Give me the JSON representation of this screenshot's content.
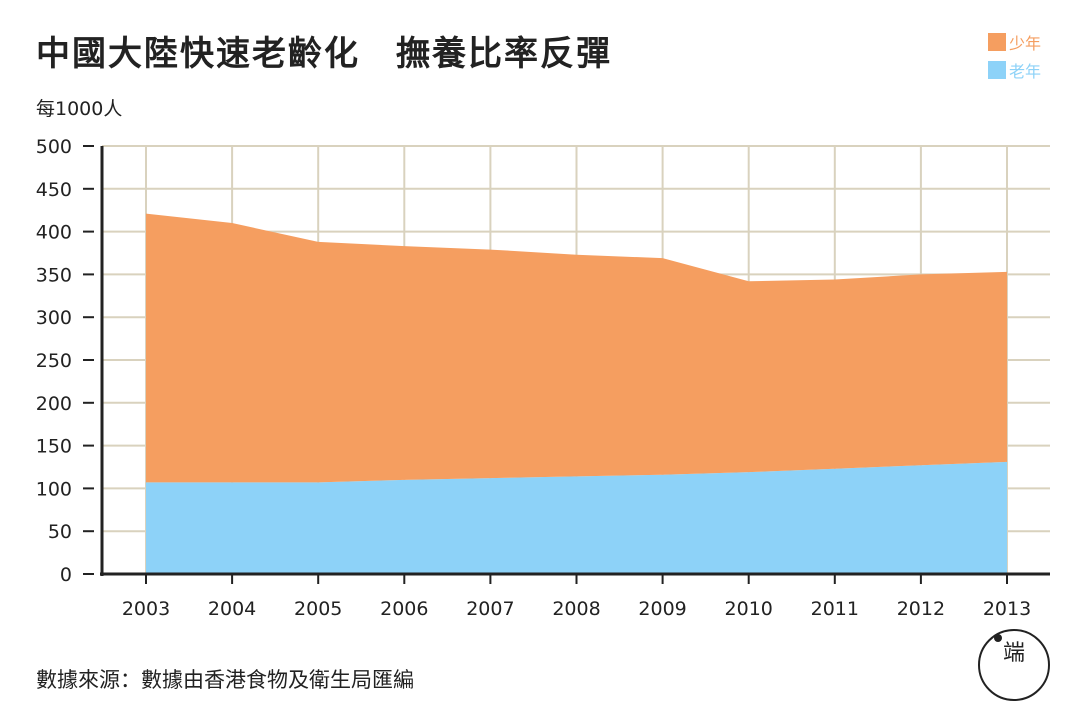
{
  "title": "中國大陸快速老齡化　撫養比率反彈",
  "unit_label": "每1000人",
  "source": "數據來源：數據由香港食物及衛生局匯編",
  "logo": {
    "icon": "initium-logo-icon",
    "text": "端"
  },
  "legend": [
    {
      "label": "少年",
      "color": "#F59E60"
    },
    {
      "label": "老年",
      "color": "#8DD2F8"
    }
  ],
  "chart_data": {
    "type": "area",
    "stacked": true,
    "x": [
      "2003",
      "2004",
      "2005",
      "2006",
      "2007",
      "2008",
      "2009",
      "2010",
      "2011",
      "2012",
      "2013"
    ],
    "series": [
      {
        "name": "老年",
        "color": "#8DD2F8",
        "values": [
          107,
          107,
          107,
          110,
          112,
          114,
          116,
          119,
          123,
          127,
          131
        ]
      },
      {
        "name": "少年",
        "color": "#F59E60",
        "values": [
          314,
          303,
          281,
          273,
          267,
          259,
          253,
          223,
          221,
          223,
          222
        ]
      }
    ],
    "ylim": [
      0,
      500
    ],
    "yticks": [
      0,
      50,
      100,
      150,
      200,
      250,
      300,
      350,
      400,
      450,
      500
    ],
    "ylabel": "每1000人",
    "grid": true,
    "legend_position": "top-right"
  }
}
